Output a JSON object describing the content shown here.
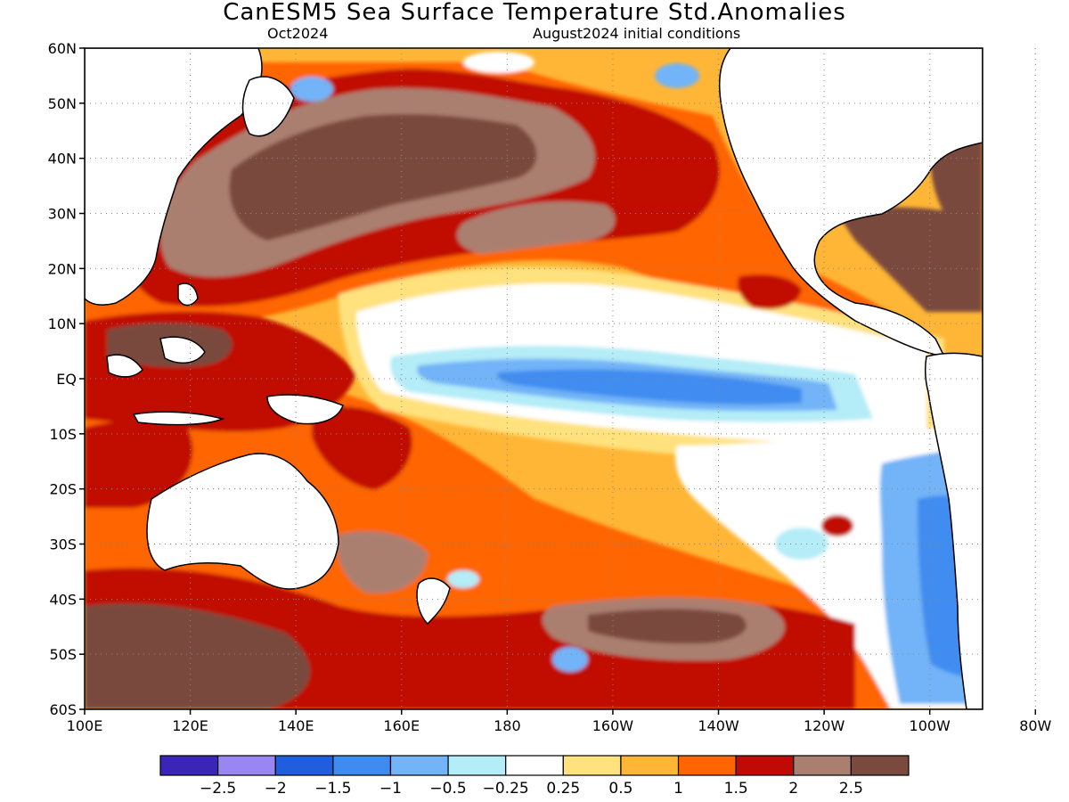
{
  "title": "CanESM5 Sea Surface Temperature Std.Anomalies",
  "subtitle_left": "Oct2024",
  "subtitle_right": "August2024 initial conditions",
  "lat_labels": [
    "60N",
    "50N",
    "40N",
    "30N",
    "20N",
    "10N",
    "EQ",
    "10S",
    "20S",
    "30S",
    "40S",
    "50S",
    "60S"
  ],
  "lon_labels": [
    "100E",
    "120E",
    "140E",
    "160E",
    "180",
    "160W",
    "140W",
    "120W",
    "100W",
    "80W"
  ],
  "colorbar": {
    "colors": [
      "#3b24b8",
      "#9a86f2",
      "#1f5fdf",
      "#3f8cf0",
      "#72b4f7",
      "#b4ecf7",
      "#ffffff",
      "#ffe17d",
      "#ffb636",
      "#ff6500",
      "#c00a05",
      "#ab7f70",
      "#7a4a3e"
    ],
    "labels": [
      "−2.5",
      "−2",
      "−1.5",
      "−1",
      "−0.5",
      "−0.25",
      "0.25",
      "0.5",
      "1",
      "1.5",
      "2",
      "2.5"
    ]
  },
  "colors": {
    "brown": "#7a4a3e",
    "mauve": "#ab7f70",
    "darkred": "#c00a05",
    "red": "#ff6500",
    "orange": "#ffb636",
    "yellow": "#ffe17d",
    "white": "#ffffff",
    "cyan": "#b4ecf7",
    "lightblue": "#72b4f7",
    "blue": "#3f8cf0",
    "darkblue": "#1f5fdf",
    "violet": "#9a86f2",
    "purple": "#3b24b8"
  }
}
